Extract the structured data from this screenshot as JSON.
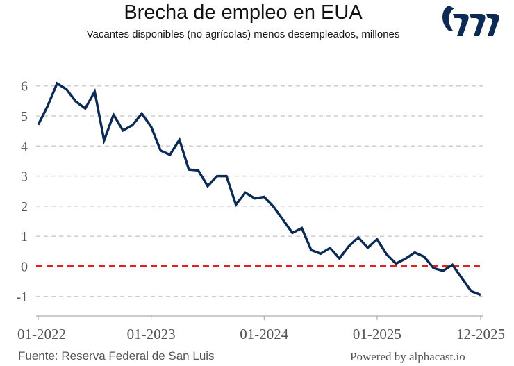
{
  "chart_data": {
    "type": "line",
    "title": "Brecha de empleo en EUA",
    "subtitle": "Vacantes disponibles (no agrícolas) menos desempleados, millones",
    "xlabel": "",
    "ylabel": "",
    "x_start": "2022-01",
    "x_end": "2025-12",
    "x_tick_labels": [
      "01-2022",
      "01-2023",
      "01-2024",
      "01-2025",
      "12-2025"
    ],
    "x_tick_index": [
      0,
      12,
      24,
      36,
      47
    ],
    "y_ticks": [
      6,
      5,
      4,
      3,
      2,
      1,
      0,
      -1
    ],
    "ylim": [
      -1.2,
      6.3
    ],
    "grid": true,
    "series": [
      {
        "name": "Brecha de empleo",
        "color": "#0b2a55",
        "values": [
          4.71,
          5.33,
          6.08,
          5.89,
          5.48,
          5.25,
          5.81,
          4.19,
          5.04,
          4.52,
          4.69,
          5.08,
          4.64,
          3.85,
          3.71,
          4.21,
          3.22,
          3.19,
          2.67,
          3.0,
          3.0,
          2.05,
          2.45,
          2.26,
          2.31,
          1.98,
          1.55,
          1.11,
          1.27,
          0.54,
          0.42,
          0.61,
          0.26,
          0.67,
          0.96,
          0.62,
          0.9,
          0.4,
          0.09,
          0.25,
          0.46,
          0.32,
          -0.06,
          -0.15,
          0.05,
          -0.39,
          -0.83,
          -0.95
        ]
      }
    ],
    "reference_line": {
      "value": 0,
      "color": "#e02020",
      "style": "dashed"
    }
  },
  "footer": {
    "source": "Fuente: Reserva Federal de San Luis",
    "powered": "Powered by alphacast.io"
  }
}
